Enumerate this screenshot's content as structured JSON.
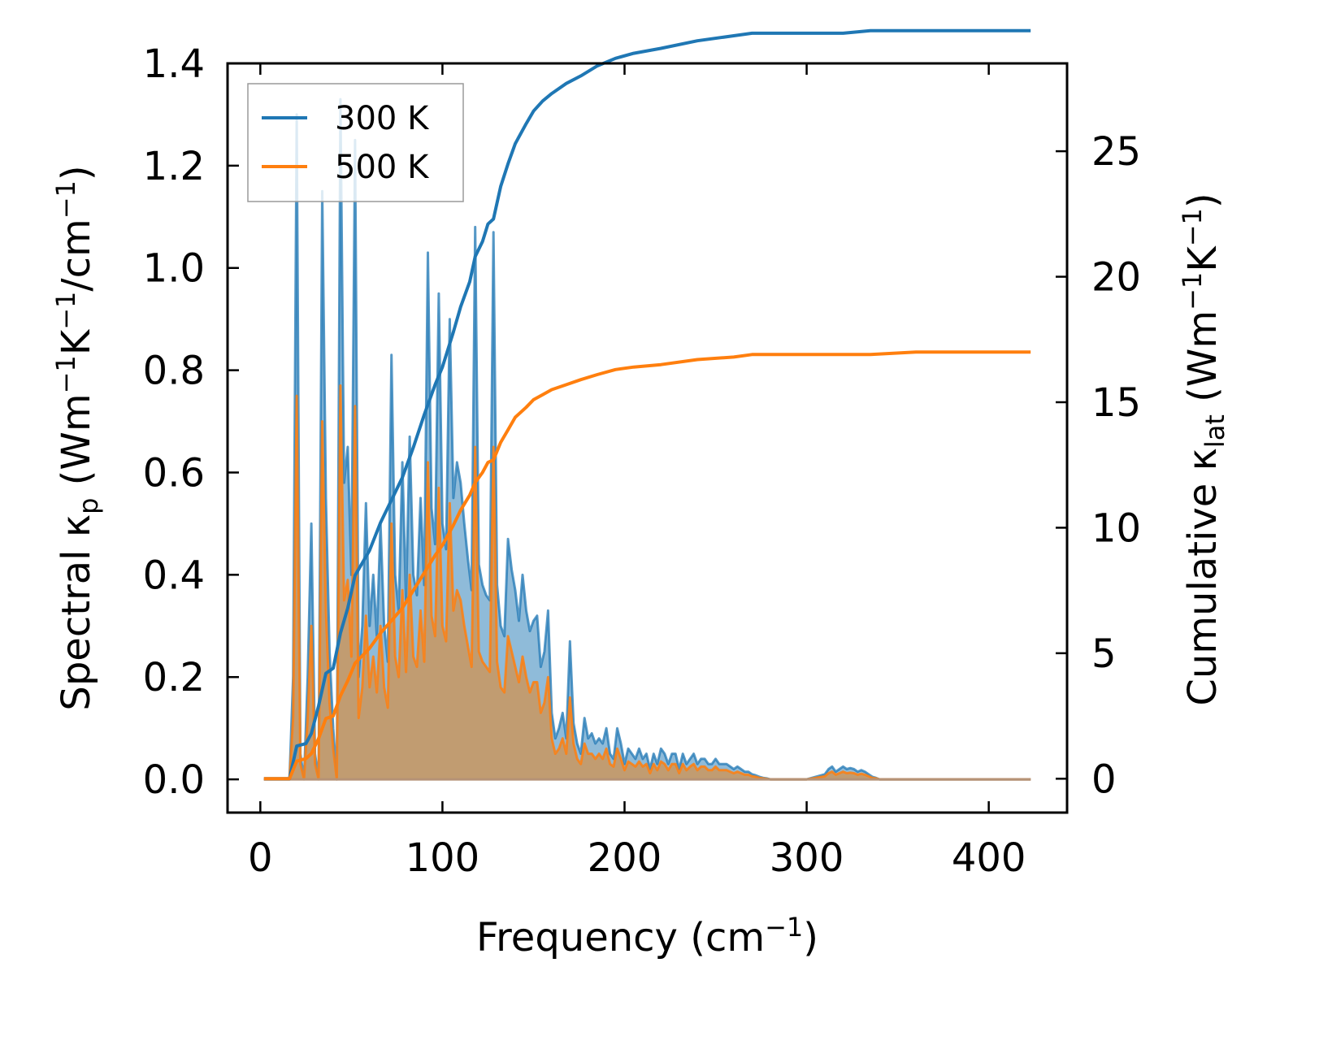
{
  "chart_data": {
    "type": "line",
    "title": "",
    "xlabel": {
      "base": "Frequency (cm",
      "sup": "−1",
      "tail": ")"
    },
    "ylabel_left": {
      "base": "Spectral κ",
      "sub": "p",
      "mid": " (Wm",
      "sup1": "−1",
      "mid2": "K",
      "sup2": "−1",
      "mid3": "/cm",
      "sup3": "−1",
      "tail": ")"
    },
    "ylabel_right": {
      "base": "Cumulative κ",
      "sub": "lat",
      "mid": " (Wm",
      "sup1": "−1",
      "mid2": "K",
      "sup2": "−1",
      "tail": ")"
    },
    "xlim": [
      -18,
      443
    ],
    "ylim_left": [
      -0.065,
      1.4
    ],
    "ylim_right": [
      -1.35,
      28.5
    ],
    "x_ticks": [
      0,
      100,
      200,
      300,
      400
    ],
    "x_tick_labels": [
      "0",
      "100",
      "200",
      "300",
      "400"
    ],
    "y_left_ticks": [
      0.0,
      0.2,
      0.4,
      0.6,
      0.8,
      1.0,
      1.2,
      1.4
    ],
    "y_left_tick_labels": [
      "0.0",
      "0.2",
      "0.4",
      "0.6",
      "0.8",
      "1.0",
      "1.2",
      "1.4"
    ],
    "y_right_ticks": [
      0,
      5,
      10,
      15,
      20,
      25
    ],
    "y_right_tick_labels": [
      "0",
      "5",
      "10",
      "15",
      "20",
      "25"
    ],
    "legend_position": "top-left",
    "colors": {
      "series_300": "#1f77b4",
      "series_500": "#ff7f0e",
      "fill_500": "#c49a6c"
    },
    "legend": [
      {
        "label": "300 K",
        "color": "#1f77b4"
      },
      {
        "label": "500 K",
        "color": "#ff7f0e"
      }
    ],
    "spectral": {
      "x": [
        2,
        16,
        18,
        20,
        22,
        24,
        26,
        28,
        30,
        32,
        34,
        36,
        38,
        40,
        42,
        44,
        46,
        48,
        50,
        52,
        54,
        56,
        58,
        60,
        62,
        64,
        66,
        68,
        70,
        72,
        74,
        76,
        78,
        80,
        82,
        84,
        86,
        88,
        90,
        92,
        94,
        96,
        98,
        100,
        102,
        104,
        106,
        108,
        110,
        112,
        114,
        116,
        118,
        120,
        122,
        124,
        126,
        128,
        130,
        132,
        134,
        136,
        138,
        140,
        142,
        144,
        146,
        148,
        150,
        152,
        154,
        156,
        158,
        160,
        162,
        164,
        166,
        168,
        170,
        172,
        174,
        176,
        178,
        180,
        182,
        184,
        186,
        188,
        190,
        192,
        194,
        196,
        198,
        200,
        202,
        204,
        206,
        208,
        210,
        212,
        214,
        216,
        218,
        220,
        222,
        224,
        226,
        228,
        230,
        232,
        234,
        236,
        238,
        240,
        242,
        244,
        246,
        248,
        250,
        252,
        254,
        256,
        258,
        260,
        262,
        264,
        266,
        268,
        270,
        272,
        274,
        276,
        278,
        280,
        290,
        300,
        305,
        310,
        312,
        314,
        316,
        318,
        320,
        322,
        324,
        326,
        328,
        330,
        332,
        334,
        336,
        338,
        340,
        345,
        360,
        380,
        400,
        423
      ],
      "kappa_300": [
        0,
        0,
        0.2,
        1.3,
        0.05,
        0,
        0.2,
        0.5,
        0.05,
        0,
        1.15,
        0.55,
        0.25,
        0.1,
        0,
        1.33,
        0.58,
        0.65,
        0.4,
        1.25,
        0.2,
        0.3,
        0.54,
        0.3,
        0.4,
        0.28,
        0.5,
        0.3,
        0.23,
        0.83,
        0.4,
        0.33,
        0.62,
        0.35,
        0.67,
        0.4,
        0.36,
        0.55,
        0.38,
        1.03,
        0.53,
        0.46,
        0.95,
        0.5,
        0.45,
        0.9,
        0.55,
        0.62,
        0.58,
        0.5,
        0.43,
        0.37,
        1.08,
        0.42,
        0.38,
        0.36,
        0.35,
        1.07,
        0.38,
        0.3,
        0.28,
        0.47,
        0.41,
        0.37,
        0.31,
        0.4,
        0.33,
        0.29,
        0.31,
        0.32,
        0.22,
        0.25,
        0.33,
        0.13,
        0.08,
        0.1,
        0.13,
        0.08,
        0.27,
        0.11,
        0.07,
        0.05,
        0.12,
        0.08,
        0.09,
        0.07,
        0.08,
        0.07,
        0.1,
        0.05,
        0.04,
        0.1,
        0.07,
        0.03,
        0.06,
        0.05,
        0.04,
        0.06,
        0.04,
        0.05,
        0.02,
        0.05,
        0.03,
        0.06,
        0.05,
        0.03,
        0.05,
        0.05,
        0.02,
        0.05,
        0.03,
        0.04,
        0.05,
        0.03,
        0.04,
        0.04,
        0.03,
        0.03,
        0.04,
        0.03,
        0.03,
        0.03,
        0.025,
        0.02,
        0.025,
        0.02,
        0.015,
        0.015,
        0.01,
        0.008,
        0.005,
        0.003,
        0.002,
        0,
        0,
        0,
        0.005,
        0.01,
        0.02,
        0.025,
        0.015,
        0.02,
        0.025,
        0.02,
        0.022,
        0.02,
        0.015,
        0.018,
        0.015,
        0.01,
        0.005,
        0.003,
        0,
        0,
        0,
        0,
        0,
        0
      ],
      "kappa_500": [
        0,
        0,
        0.12,
        0.75,
        0.03,
        0,
        0.12,
        0.3,
        0.03,
        0,
        0.7,
        0.33,
        0.15,
        0.06,
        0,
        0.77,
        0.35,
        0.39,
        0.24,
        0.73,
        0.12,
        0.18,
        0.32,
        0.18,
        0.24,
        0.17,
        0.3,
        0.18,
        0.14,
        0.5,
        0.24,
        0.2,
        0.37,
        0.21,
        0.4,
        0.24,
        0.22,
        0.33,
        0.23,
        0.62,
        0.32,
        0.28,
        0.57,
        0.3,
        0.27,
        0.54,
        0.33,
        0.37,
        0.35,
        0.3,
        0.26,
        0.22,
        0.65,
        0.25,
        0.23,
        0.22,
        0.21,
        0.65,
        0.23,
        0.18,
        0.17,
        0.28,
        0.25,
        0.22,
        0.19,
        0.24,
        0.2,
        0.17,
        0.19,
        0.19,
        0.13,
        0.15,
        0.2,
        0.08,
        0.05,
        0.06,
        0.08,
        0.05,
        0.16,
        0.07,
        0.04,
        0.03,
        0.07,
        0.05,
        0.05,
        0.04,
        0.05,
        0.04,
        0.06,
        0.03,
        0.025,
        0.06,
        0.04,
        0.018,
        0.035,
        0.03,
        0.025,
        0.035,
        0.025,
        0.03,
        0.012,
        0.03,
        0.018,
        0.035,
        0.03,
        0.018,
        0.03,
        0.03,
        0.012,
        0.03,
        0.018,
        0.025,
        0.03,
        0.018,
        0.025,
        0.025,
        0.018,
        0.018,
        0.025,
        0.018,
        0.018,
        0.018,
        0.015,
        0.012,
        0.015,
        0.012,
        0.009,
        0.009,
        0.006,
        0.005,
        0.003,
        0.002,
        0.001,
        0,
        0,
        0,
        0.003,
        0.006,
        0.012,
        0.015,
        0.009,
        0.012,
        0.015,
        0.012,
        0.013,
        0.012,
        0.009,
        0.011,
        0.009,
        0.006,
        0.003,
        0.002,
        0,
        0,
        0,
        0,
        0,
        0
      ]
    },
    "cumulative": {
      "x_300": [
        2,
        16,
        20,
        25,
        28,
        32,
        36,
        40,
        44,
        48,
        52,
        56,
        60,
        66,
        72,
        78,
        84,
        90,
        96,
        100,
        106,
        110,
        115,
        118,
        122,
        125,
        128,
        132,
        136,
        140,
        146,
        150,
        155,
        160,
        168,
        176,
        185,
        195,
        205,
        220,
        240,
        260,
        270,
        290,
        310,
        320,
        335,
        360,
        400,
        423
      ],
      "y_300": [
        0,
        0,
        1.3,
        1.4,
        1.8,
        2.9,
        4.2,
        4.4,
        5.8,
        6.8,
        8.1,
        8.6,
        9.1,
        10.2,
        11.1,
        12.0,
        13.2,
        14.5,
        15.7,
        16.4,
        17.8,
        18.8,
        19.8,
        20.8,
        21.4,
        22.1,
        22.3,
        23.6,
        24.5,
        25.3,
        26.1,
        26.6,
        27.0,
        27.3,
        27.7,
        28.0,
        28.4,
        28.7,
        28.9,
        29.1,
        29.4,
        29.6,
        29.7,
        29.7,
        29.7,
        29.7,
        29.8,
        29.8,
        29.8,
        29.8
      ],
      "x_500": [
        2,
        16,
        20,
        25,
        28,
        32,
        36,
        40,
        44,
        48,
        52,
        56,
        60,
        66,
        72,
        78,
        84,
        90,
        96,
        100,
        106,
        110,
        115,
        118,
        122,
        125,
        128,
        132,
        136,
        140,
        146,
        150,
        155,
        160,
        168,
        176,
        185,
        195,
        205,
        220,
        240,
        260,
        270,
        290,
        310,
        320,
        335,
        360,
        400,
        423
      ],
      "y_500": [
        0,
        0,
        0.7,
        0.8,
        1.0,
        1.6,
        2.4,
        2.5,
        3.3,
        3.9,
        4.6,
        4.9,
        5.2,
        5.8,
        6.3,
        6.8,
        7.5,
        8.2,
        8.9,
        9.3,
        10.1,
        10.7,
        11.3,
        11.8,
        12.2,
        12.6,
        12.7,
        13.4,
        13.9,
        14.4,
        14.8,
        15.1,
        15.3,
        15.5,
        15.7,
        15.9,
        16.1,
        16.3,
        16.4,
        16.5,
        16.7,
        16.8,
        16.9,
        16.9,
        16.9,
        16.9,
        16.9,
        17.0,
        17.0,
        17.0
      ]
    }
  }
}
